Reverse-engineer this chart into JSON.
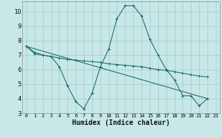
{
  "xlabel": "Humidex (Indice chaleur)",
  "bg_color": "#c8e8e8",
  "grid_color": "#a8cccc",
  "line_color": "#1a6b6b",
  "xlim": [
    -0.5,
    23.5
  ],
  "ylim": [
    3.0,
    10.7
  ],
  "yticks": [
    3,
    4,
    5,
    6,
    7,
    8,
    9,
    10
  ],
  "xticks": [
    0,
    1,
    2,
    3,
    4,
    5,
    6,
    7,
    8,
    9,
    10,
    11,
    12,
    13,
    14,
    15,
    16,
    17,
    18,
    19,
    20,
    21,
    22,
    23
  ],
  "series1_x": [
    0,
    1,
    2,
    3,
    4,
    5,
    6,
    7,
    8,
    9,
    10,
    11,
    12,
    13,
    14,
    15,
    16,
    17,
    18,
    19,
    20,
    21,
    22
  ],
  "series1_y": [
    7.6,
    7.1,
    7.0,
    6.9,
    6.2,
    4.9,
    3.8,
    3.3,
    4.4,
    6.2,
    7.4,
    9.5,
    10.4,
    10.4,
    9.7,
    8.1,
    7.0,
    6.0,
    5.3,
    4.2,
    4.2,
    3.5,
    4.0
  ],
  "series2_x": [
    0,
    1,
    2,
    3,
    4,
    5,
    6,
    7,
    8,
    9,
    10,
    11,
    12,
    13,
    14,
    15,
    16,
    17,
    18,
    19,
    20,
    21,
    22
  ],
  "series2_y": [
    7.6,
    7.2,
    7.0,
    6.9,
    6.8,
    6.7,
    6.65,
    6.6,
    6.55,
    6.5,
    6.4,
    6.35,
    6.3,
    6.25,
    6.2,
    6.1,
    6.0,
    5.95,
    5.85,
    5.75,
    5.65,
    5.55,
    5.5
  ],
  "series3_x": [
    0,
    22
  ],
  "series3_y": [
    7.6,
    4.0
  ]
}
